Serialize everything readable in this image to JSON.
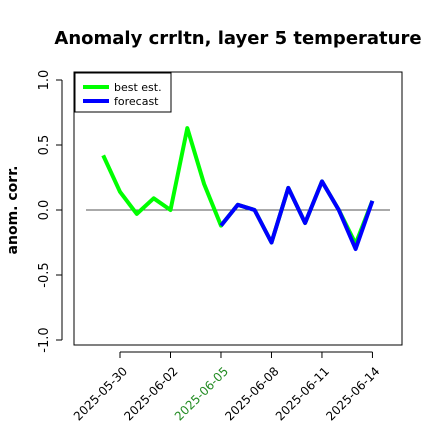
{
  "chart_data": {
    "type": "line",
    "title": "Anomaly crrltn, layer 5 temperature",
    "ylabel": "anom. corr.",
    "xlabel": "",
    "ylim": [
      -1.0,
      1.0
    ],
    "yticks": [
      "-1.0",
      "-0.5",
      "0.0",
      "0.5",
      "1.0"
    ],
    "x_tick_labels": [
      "2025-05-30",
      "2025-06-02",
      "2025-06-05",
      "2025-06-08",
      "2025-06-11",
      "2025-06-14"
    ],
    "highlight_tick": "2025-06-05",
    "highlight_color": "#228B22",
    "reference_line": 0.0,
    "legend": {
      "position": "top-left",
      "entries": [
        "best est.",
        "forecast"
      ]
    },
    "x": [
      "2025-05-29",
      "2025-05-30",
      "2025-05-31",
      "2025-06-01",
      "2025-06-02",
      "2025-06-03",
      "2025-06-04",
      "2025-06-05",
      "2025-06-06",
      "2025-06-07",
      "2025-06-08",
      "2025-06-09",
      "2025-06-10",
      "2025-06-11",
      "2025-06-12",
      "2025-06-13",
      "2025-06-14"
    ],
    "series": [
      {
        "name": "best est.",
        "color": "#00ff00",
        "values": [
          0.42,
          0.14,
          -0.03,
          0.09,
          0.0,
          0.63,
          0.2,
          -0.12,
          0.04,
          0.0,
          -0.25,
          0.17,
          -0.1,
          0.22,
          0.0,
          -0.26,
          0.07
        ]
      },
      {
        "name": "forecast",
        "color": "#0000ff",
        "values": [
          null,
          null,
          null,
          null,
          null,
          null,
          null,
          -0.12,
          0.04,
          0.0,
          -0.25,
          0.17,
          -0.1,
          0.22,
          0.0,
          -0.3,
          0.07
        ]
      }
    ]
  }
}
